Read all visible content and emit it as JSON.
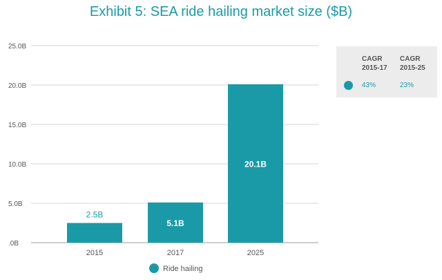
{
  "chart_data": {
    "type": "bar",
    "title": "Exhibit 5: SEA ride hailing market size ($B)",
    "categories": [
      "2015",
      "2017",
      "2025"
    ],
    "series": [
      {
        "name": "Ride hailing",
        "values": [
          2.5,
          5.1,
          20.1
        ],
        "labels": [
          "2.5B",
          "5.1B",
          "20.1B"
        ]
      }
    ],
    "yticks": [
      {
        "value": 0,
        "label": ".0B"
      },
      {
        "value": 5,
        "label": "5.0B"
      },
      {
        "value": 10,
        "label": "10.0B"
      },
      {
        "value": 15,
        "label": "15.0B"
      },
      {
        "value": 20,
        "label": "20.0B"
      },
      {
        "value": 25,
        "label": "25.0B"
      }
    ],
    "ylim": [
      0,
      25
    ],
    "grid": true,
    "legend_position": "bottom-center",
    "color": "#1a9aa6"
  },
  "cagr_table": {
    "headers": [
      "CAGR\n2015-17",
      "CAGR\n2015-25"
    ],
    "values": [
      "43%",
      "23%"
    ]
  }
}
